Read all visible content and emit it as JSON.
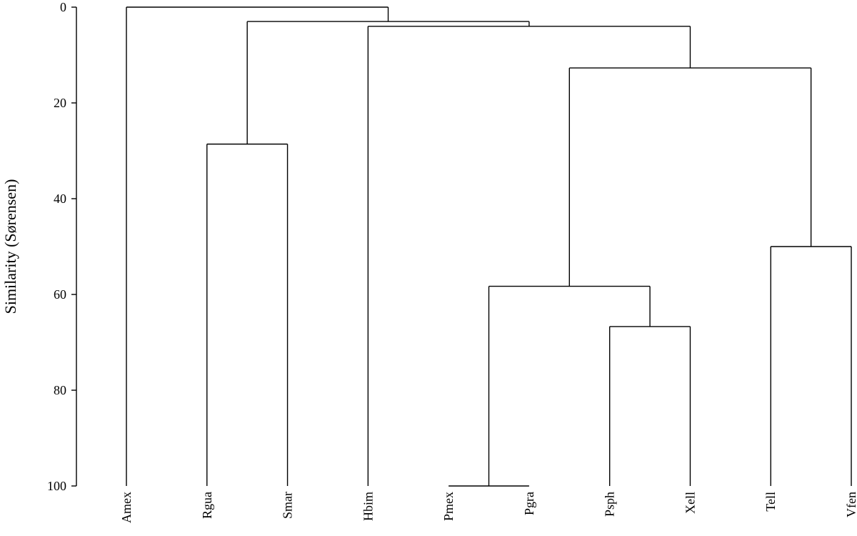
{
  "chart_data": {
    "type": "dendrogram",
    "ylabel": "Similarity (Sørensen)",
    "ylim": [
      0,
      100
    ],
    "yticks": [
      "0",
      "20",
      "40",
      "60",
      "80",
      "100"
    ],
    "leaves": [
      "Amex",
      "Rgua",
      "Smar",
      "Hbim",
      "Pmex",
      "Pgra",
      "Psph",
      "Xell",
      "Tell",
      "Vfen"
    ],
    "merges": [
      {
        "members": [
          "Pmex",
          "Pgra"
        ],
        "similarity": 100
      },
      {
        "members": [
          "Psph",
          "Xell"
        ],
        "similarity": 66.7
      },
      {
        "members": [
          "Pmex",
          "Pgra",
          "Psph",
          "Xell"
        ],
        "similarity": 58.3
      },
      {
        "members": [
          "Tell",
          "Vfen"
        ],
        "similarity": 50
      },
      {
        "members": [
          "Rgua",
          "Smar"
        ],
        "similarity": 28.6
      },
      {
        "members": [
          "Pmex",
          "Pgra",
          "Psph",
          "Xell",
          "Tell",
          "Vfen"
        ],
        "similarity": 12.7
      },
      {
        "members": [
          "Hbim",
          "Pmex",
          "Pgra",
          "Psph",
          "Xell",
          "Tell",
          "Vfen"
        ],
        "similarity": 4
      },
      {
        "members": [
          "Rgua",
          "Smar",
          "Hbim",
          "Pmex",
          "Pgra",
          "Psph",
          "Xell",
          "Tell",
          "Vfen"
        ],
        "similarity": 3
      },
      {
        "members": [
          "Amex",
          "Rgua",
          "Smar",
          "Hbim",
          "Pmex",
          "Pgra",
          "Psph",
          "Xell",
          "Tell",
          "Vfen"
        ],
        "similarity": 0
      }
    ]
  }
}
